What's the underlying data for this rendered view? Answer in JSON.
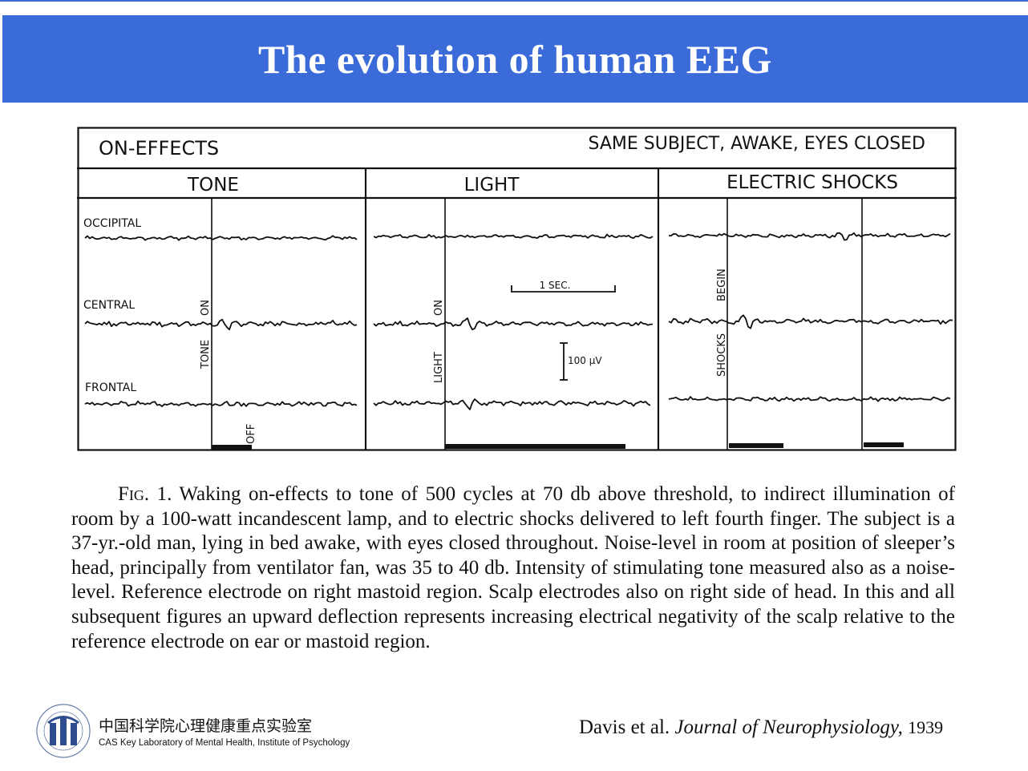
{
  "title": "The evolution of human EEG",
  "figure": {
    "header_left": "ON-EFFECTS",
    "header_right": "SAME SUBJECT, AWAKE, EYES CLOSED",
    "columns": [
      "TONE",
      "LIGHT",
      "ELECTRIC SHOCKS"
    ],
    "rows": [
      "OCCIPITAL",
      "CENTRAL",
      "FRONTAL"
    ],
    "tone_on": "ON",
    "tone_stim": "TONE",
    "tone_off": "OFF",
    "light_on": "ON",
    "light_stim": "LIGHT",
    "shocks_begin": "BEGIN",
    "shocks_stim": "SHOCKS",
    "time_scale": "1 SEC.",
    "amp_scale": "100 µV"
  },
  "caption": {
    "fig_label": "Fig. 1.",
    "text": "Waking on-effects to tone of 500 cycles at 70 db above threshold, to indirect illumination of room by a 100-watt incandescent lamp, and to electric shocks delivered to left fourth finger. The subject is a 37-yr.-old man, lying in bed awake, with eyes closed throughout. Noise-level in room at position of sleeper’s head, principally from ventilator fan, was 35 to 40 db. Intensity of stimulating tone measured also as a noise-level. Reference electrode on right mastoid region. Scalp electrodes also on right side of head. In this and all subsequent figures an upward deflection represents increasing electrical negativity of the scalp relative to the reference electrode on ear or mastoid region."
  },
  "footer": {
    "lab_cn": "中国科学院心理健康重点实验室",
    "lab_en": "CAS Key Laboratory of Mental Health, Institute of Psychology",
    "cite_authors": "Davis et al.",
    "cite_journal": "Journal of Neurophysiology,",
    "cite_year": "1939"
  },
  "colors": {
    "banner": "#3a6bd8",
    "banner_text": "#ffffff",
    "ink": "#111111"
  },
  "icons": {
    "logo": "cas-psychology-logo-icon"
  }
}
